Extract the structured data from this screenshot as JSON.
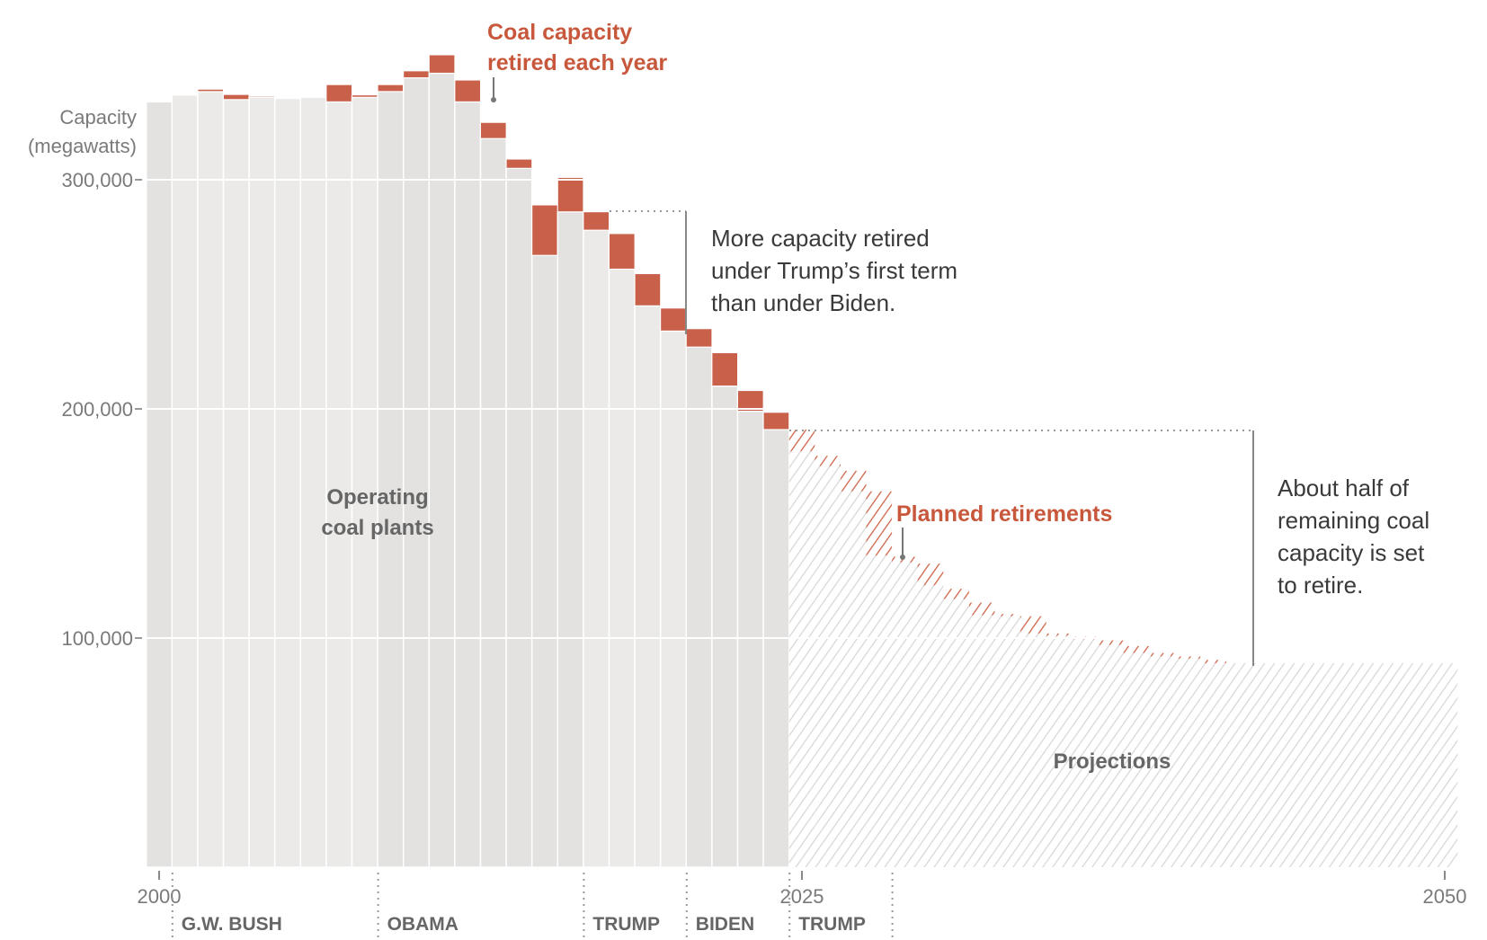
{
  "chart_data": {
    "type": "bar",
    "title": "",
    "ylabel": "Capacity (megawatts)",
    "ylabel_lines": [
      "Capacity",
      "(megawatts)"
    ],
    "xlabel": "",
    "ylim": [
      0,
      340000
    ],
    "yticks": [
      {
        "value": 100000,
        "label": "100,000"
      },
      {
        "value": 200000,
        "label": "200,000"
      },
      {
        "value": 300000,
        "label": "300,000"
      }
    ],
    "xticks": [
      {
        "value": 2000,
        "label": "2000"
      },
      {
        "value": 2025,
        "label": "2025"
      },
      {
        "value": 2050,
        "label": "2050"
      }
    ],
    "grid": true,
    "colors": {
      "operating_light": "#ebeae8",
      "operating_dark": "#e3e2e0",
      "retired": "#c8604a",
      "planned": "#cf6448",
      "projection_hatch": "#d5d5d5",
      "grid": "#ffffff",
      "axis_text": "#7a7a7a"
    },
    "series": [
      {
        "name": "Operating coal plants",
        "years": [
          2000,
          2001,
          2002,
          2003,
          2004,
          2005,
          2006,
          2007,
          2008,
          2009,
          2010,
          2011,
          2012,
          2013,
          2014,
          2015,
          2016,
          2017,
          2018,
          2019,
          2020,
          2021,
          2022,
          2023,
          2024
        ],
        "values": [
          334000,
          337000,
          338500,
          335000,
          336000,
          335500,
          336000,
          334000,
          336000,
          338500,
          344500,
          346500,
          334000,
          318000,
          305000,
          267000,
          286000,
          278000,
          261000,
          245000,
          234000,
          227000,
          210000,
          199000,
          191000
        ]
      },
      {
        "name": "Coal capacity retired each year",
        "years": [
          2000,
          2001,
          2002,
          2003,
          2004,
          2005,
          2006,
          2007,
          2008,
          2009,
          2010,
          2011,
          2012,
          2013,
          2014,
          2015,
          2016,
          2017,
          2018,
          2019,
          2020,
          2021,
          2022,
          2023,
          2024
        ],
        "values": [
          0,
          0,
          1000,
          2200,
          500,
          0,
          0,
          7500,
          1000,
          3000,
          3000,
          8000,
          9500,
          7000,
          4000,
          22000,
          15000,
          8000,
          15500,
          14000,
          10000,
          8000,
          14500,
          9000,
          7500
        ]
      },
      {
        "name": "Projections",
        "years": [
          2025,
          2026,
          2027,
          2028,
          2029,
          2030,
          2031,
          2032,
          2033,
          2034,
          2035,
          2036,
          2037,
          2038,
          2039,
          2040,
          2041,
          2042,
          2043,
          2044,
          2045,
          2046,
          2047,
          2048,
          2049,
          2050
        ],
        "values": [
          181500,
          175000,
          164000,
          136000,
          133000,
          123000,
          117000,
          110000,
          109500,
          102000,
          101000,
          99500,
          97000,
          93500,
          92000,
          91000,
          89000,
          89000,
          89000,
          89000,
          89000,
          89000,
          89000,
          89000,
          89000,
          89000
        ]
      },
      {
        "name": "Planned retirements",
        "years": [
          2025,
          2026,
          2027,
          2028,
          2029,
          2030,
          2031,
          2032,
          2033,
          2034,
          2035,
          2036,
          2037,
          2038,
          2039,
          2040,
          2041,
          2042,
          2043,
          2044,
          2045,
          2046,
          2047,
          2048,
          2049,
          2050
        ],
        "values": [
          9500,
          4500,
          9000,
          28000,
          2500,
          9500,
          4500,
          5500,
          1000,
          7500,
          1000,
          1000,
          2000,
          3000,
          1500,
          1000,
          1500,
          0,
          0,
          0,
          0,
          0,
          0,
          0,
          0,
          0
        ]
      }
    ],
    "annotations": {
      "retired_label": [
        "Coal capacity",
        "retired each year"
      ],
      "trump_biden_note": [
        "More capacity retired",
        "under Trump’s first term",
        "than under Biden."
      ],
      "half_note": [
        "About half of",
        "remaining coal",
        "capacity is set",
        "to retire."
      ],
      "planned_label": "Planned retirements",
      "operating_label": [
        "Operating",
        "coal plants"
      ],
      "projections_label": "Projections"
    },
    "presidencies": [
      {
        "label": "G.W. BUSH",
        "start": 2001,
        "end": 2009
      },
      {
        "label": "OBAMA",
        "start": 2009,
        "end": 2017
      },
      {
        "label": "TRUMP",
        "start": 2017,
        "end": 2021
      },
      {
        "label": "BIDEN",
        "start": 2021,
        "end": 2025
      },
      {
        "label": "TRUMP",
        "start": 2025,
        "end": 2029
      }
    ]
  }
}
